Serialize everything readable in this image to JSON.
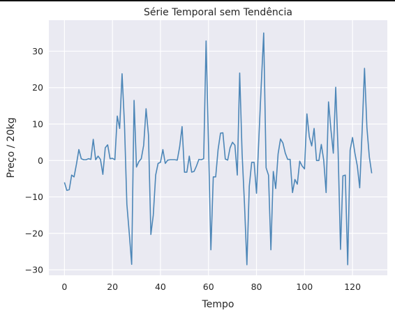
{
  "chart_data": {
    "type": "line",
    "title": "Série Temporal sem Tendência",
    "xlabel": "Tempo",
    "ylabel": "Preço / 20kg",
    "xlim": [
      -6.5,
      134.5
    ],
    "ylim": [
      -31.5,
      38.5
    ],
    "xticks": [
      0,
      20,
      40,
      60,
      80,
      100,
      120
    ],
    "yticks": [
      -30,
      -20,
      -10,
      0,
      10,
      20,
      30
    ],
    "xtick_labels": [
      "0",
      "20",
      "40",
      "60",
      "80",
      "100",
      "120"
    ],
    "ytick_labels": [
      "−30",
      "−20",
      "−10",
      "0",
      "10",
      "20",
      "30"
    ],
    "grid": true,
    "background": "#eaeaf2",
    "line_color": "#4c86b7",
    "series": [
      {
        "x": [
          0,
          1,
          2,
          3,
          4,
          5,
          6,
          7,
          8,
          9,
          10,
          11,
          12,
          13,
          14,
          15,
          16,
          17,
          18,
          19,
          20,
          21,
          22,
          23,
          24,
          25,
          26,
          27,
          28,
          29,
          30,
          31,
          32,
          33,
          34,
          35,
          36,
          37,
          38,
          39,
          40,
          41,
          42,
          43,
          44,
          45,
          46,
          47,
          48,
          49,
          50,
          51,
          52,
          53,
          54,
          55,
          56,
          57,
          58,
          59,
          60,
          61,
          62,
          63,
          64,
          65,
          66,
          67,
          68,
          69,
          70,
          71,
          72,
          73,
          74,
          75,
          76,
          77,
          78,
          79,
          80,
          81,
          82,
          83,
          84,
          85,
          86,
          87,
          88,
          89,
          90,
          91,
          92,
          93,
          94,
          95,
          96,
          97,
          98,
          99,
          100,
          101,
          102,
          103,
          104,
          105,
          106,
          107,
          108,
          109,
          110,
          111,
          112,
          113,
          114,
          115,
          116,
          117,
          118,
          119,
          120,
          121,
          122,
          123,
          124,
          125,
          126,
          127,
          128
        ],
        "values": [
          -6,
          -8.2,
          -8,
          -4,
          -4.5,
          -1,
          3,
          0.5,
          0.2,
          0.2,
          0.5,
          0.3,
          5.8,
          0.2,
          1.2,
          0.3,
          -3.8,
          3.5,
          4.3,
          0.5,
          0.6,
          0.2,
          12.2,
          8.8,
          23.8,
          10,
          -12,
          -20,
          -28.5,
          16.5,
          -1.8,
          -0.3,
          0.5,
          4.2,
          14.2,
          7,
          -20.3,
          -15,
          -4,
          -0.8,
          -0.5,
          3,
          -0.8,
          0.1,
          0.2,
          0.2,
          0.2,
          0.1,
          3.8,
          9.3,
          -3.2,
          -3.2,
          1.2,
          -3.2,
          -3,
          -1.5,
          0.3,
          0.2,
          0.5,
          32.8,
          4.5,
          -24.5,
          -4.5,
          -4.5,
          3,
          7.5,
          7.6,
          0.4,
          0.1,
          3.5,
          5,
          4.2,
          -4,
          24,
          2,
          -12,
          -28.6,
          -7,
          -0.5,
          -0.5,
          -9,
          6.3,
          21,
          35,
          -2,
          -4,
          -24.5,
          -3,
          -7.7,
          1.8,
          5.9,
          4.8,
          2,
          0.3,
          0.3,
          -8.8,
          -5.2,
          -6.5,
          -0.2,
          -1.5,
          -2.3,
          12.8,
          6.5,
          4,
          8.8,
          0,
          0,
          4.4,
          0.1,
          -8.8,
          16.1,
          8.5,
          2,
          20.1,
          2.5,
          -24.4,
          -4.2,
          -4,
          -28.6,
          2.8,
          6.3,
          2,
          -1.5,
          -7.5,
          8,
          25.3,
          9,
          1,
          -3.5
        ]
      }
    ]
  }
}
